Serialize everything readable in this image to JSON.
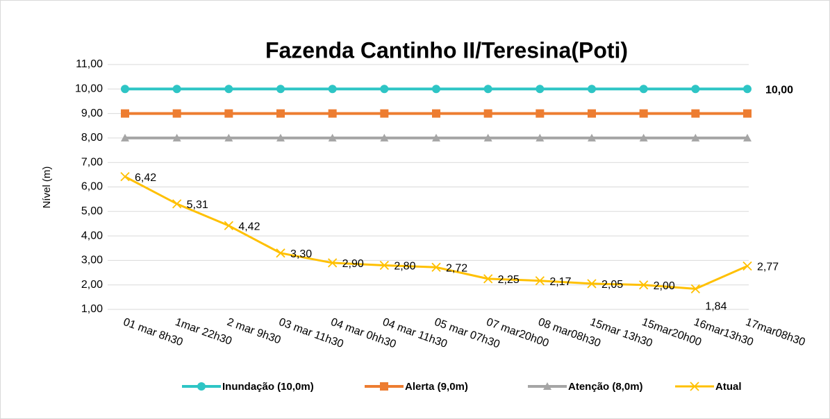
{
  "chart_data": {
    "type": "line",
    "title": "Fazenda Cantinho II/Teresina(Poti)",
    "y_label": "Nível (m)",
    "categories": [
      "01 mar 8h30",
      "1mar 22h30",
      "2 mar 9h30",
      "03 mar 11h30",
      "04 mar 0hh30",
      "04 mar 11h30",
      "05 mar 07h30",
      "07 mar20h00",
      "08 mar08h30",
      "15mar 13h30",
      "15mar20h00",
      "16mar13h30",
      "17mar08h30"
    ],
    "series": [
      {
        "name": "Inundação (10,0m)",
        "color": "#2ec5c5",
        "marker": "circle",
        "values": [
          10,
          10,
          10,
          10,
          10,
          10,
          10,
          10,
          10,
          10,
          10,
          10,
          10
        ],
        "value_labels": [
          null,
          null,
          null,
          null,
          null,
          null,
          null,
          null,
          null,
          null,
          null,
          null,
          "10,00"
        ],
        "label_color": "#4472c4"
      },
      {
        "name": "Alerta (9,0m)",
        "color": "#ed7d31",
        "marker": "square",
        "values": [
          9,
          9,
          9,
          9,
          9,
          9,
          9,
          9,
          9,
          9,
          9,
          9,
          9
        ]
      },
      {
        "name": "Atenção (8,0m)",
        "color": "#a5a5a5",
        "marker": "triangle",
        "values": [
          8,
          8,
          8,
          8,
          8,
          8,
          8,
          8,
          8,
          8,
          8,
          8,
          8
        ]
      },
      {
        "name": "Atual",
        "color": "#ffc000",
        "marker": "x",
        "values": [
          6.42,
          5.31,
          4.42,
          3.3,
          2.9,
          2.8,
          2.72,
          2.25,
          2.17,
          2.05,
          2.0,
          1.84,
          2.77
        ],
        "value_labels": [
          "6,42",
          "5,31",
          "4,42",
          "3,30",
          "2,90",
          "2,80",
          "2,72",
          "2,25",
          "2,17",
          "2,05",
          "2,00",
          "1,84",
          "2,77"
        ],
        "label_color": "#000000"
      }
    ],
    "ylim": [
      1,
      11
    ],
    "yticks": [
      {
        "value": 1,
        "label": "1,00"
      },
      {
        "value": 2,
        "label": "2,00"
      },
      {
        "value": 3,
        "label": "3,00"
      },
      {
        "value": 4,
        "label": "4,00"
      },
      {
        "value": 5,
        "label": "5,00"
      },
      {
        "value": 6,
        "label": "6,00"
      },
      {
        "value": 7,
        "label": "7,00"
      },
      {
        "value": 8,
        "label": "8,00"
      },
      {
        "value": 9,
        "label": "9,00"
      },
      {
        "value": 10,
        "label": "10,00"
      },
      {
        "value": 11,
        "label": "11,00"
      }
    ],
    "grid": true,
    "legend": "bottom"
  }
}
